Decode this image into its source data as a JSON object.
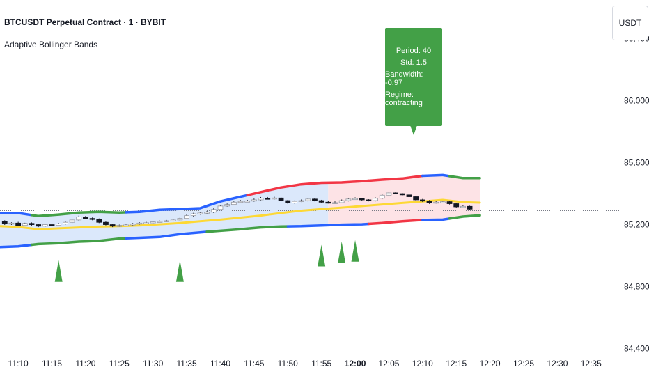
{
  "header": {
    "symbol": "BTCUSDT Perpetual Contract · 1 · BYBIT",
    "indicator": "Adaptive Bollinger Bands"
  },
  "currency": "USDT",
  "info_box": {
    "period": "Period: 40",
    "std": "Std: 1.5",
    "bandwidth": "Bandwidth: -0.97",
    "regime": "Regime: contracting"
  },
  "colors": {
    "background": "#ffffff",
    "basis": "#fdd835",
    "band_green": "#43a047",
    "band_blue": "#2962ff",
    "band_red": "#f23645",
    "fill_blue": "#dbe8fb",
    "fill_red": "#fde3e6",
    "marker": "#43a047",
    "bull_candle": "#ffffff",
    "bear_candle": "#131722",
    "axis_text": "#131722"
  },
  "chart_data": {
    "type": "line",
    "title": "BTCUSDT Perpetual Contract · 1 · BYBIT",
    "xlabel": "",
    "ylabel": "",
    "x_ticks": [
      "11:10",
      "11:15",
      "11:20",
      "11:25",
      "11:30",
      "11:35",
      "11:40",
      "11:45",
      "11:50",
      "11:55",
      "12:00",
      "12:05",
      "12:10",
      "12:15",
      "12:20",
      "12:25",
      "12:30",
      "12:35"
    ],
    "x_tick_bold": "12:00",
    "y_ticks": [
      "86,400.0",
      "86,000.0",
      "85,600.0",
      "85,200.0",
      "84,800.0",
      "84,400.0"
    ],
    "ylim": [
      84200,
      86650
    ],
    "x_start_minutes_from_11_10": -2.7,
    "x_end_minutes_from_11_10": 87.4,
    "current_price_line": 85290,
    "series": [
      {
        "name": "Upper band",
        "x": [
          -2.7,
          0,
          3,
          6,
          9,
          12,
          15,
          18,
          21,
          24,
          27,
          30,
          33,
          36,
          39,
          42,
          45,
          48,
          51,
          54,
          57,
          60,
          63,
          66,
          68.5
        ],
        "values": [
          85275,
          85275,
          85255,
          85265,
          85278,
          85282,
          85278,
          85282,
          85296,
          85300,
          85306,
          85350,
          85380,
          85410,
          85440,
          85460,
          85470,
          85472,
          85480,
          85490,
          85498,
          85515,
          85520,
          85500,
          85500
        ]
      },
      {
        "name": "Basis",
        "x": [
          -2.7,
          0,
          3,
          6,
          9,
          12,
          15,
          18,
          21,
          24,
          27,
          30,
          33,
          36,
          39,
          42,
          45,
          48,
          51,
          54,
          57,
          60,
          63,
          66,
          68.5
        ],
        "values": [
          85190,
          85185,
          85170,
          85176,
          85182,
          85187,
          85190,
          85195,
          85202,
          85210,
          85222,
          85232,
          85245,
          85258,
          85275,
          85290,
          85300,
          85310,
          85320,
          85330,
          85340,
          85350,
          85360,
          85345,
          85342
        ]
      },
      {
        "name": "Lower band",
        "x": [
          -2.7,
          0,
          3,
          6,
          9,
          12,
          15,
          18,
          21,
          24,
          27,
          30,
          33,
          36,
          39,
          42,
          45,
          48,
          51,
          54,
          57,
          60,
          63,
          66,
          68.5
        ],
        "values": [
          85055,
          85060,
          85075,
          85080,
          85090,
          85095,
          85110,
          85115,
          85120,
          85138,
          85150,
          85160,
          85170,
          85182,
          85188,
          85190,
          85195,
          85200,
          85202,
          85210,
          85222,
          85230,
          85232,
          85252,
          85260
        ]
      }
    ],
    "candles": {
      "x": [
        -2,
        -1,
        0,
        1,
        2,
        3,
        4,
        5,
        6,
        7,
        8,
        9,
        10,
        11,
        12,
        13,
        14,
        15,
        16,
        17,
        18,
        19,
        20,
        21,
        22,
        23,
        24,
        25,
        26,
        27,
        28,
        29,
        30,
        31,
        32,
        33,
        34,
        35,
        36,
        37,
        38,
        39,
        40,
        41,
        42,
        43,
        44,
        45,
        46,
        47,
        48,
        49,
        50,
        51,
        52,
        53,
        54,
        55,
        56,
        57,
        58,
        59,
        60,
        61,
        62,
        63,
        64,
        65,
        66,
        67
      ],
      "open": [
        85220,
        85205,
        85210,
        85195,
        85208,
        85200,
        85190,
        85200,
        85195,
        85205,
        85215,
        85230,
        85250,
        85240,
        85235,
        85215,
        85200,
        85190,
        85195,
        85198,
        85205,
        85210,
        85212,
        85218,
        85220,
        85225,
        85230,
        85240,
        85258,
        85270,
        85275,
        85280,
        85298,
        85320,
        85330,
        85345,
        85350,
        85352,
        85360,
        85370,
        85368,
        85372,
        85355,
        85340,
        85350,
        85355,
        85365,
        85355,
        85345,
        85340,
        85342,
        85355,
        85365,
        85368,
        85360,
        85355,
        85370,
        85390,
        85405,
        85400,
        85392,
        85380,
        85360,
        85352,
        85340,
        85345,
        85348,
        85335,
        85315,
        85318
      ],
      "close": [
        85205,
        85210,
        85195,
        85208,
        85200,
        85190,
        85200,
        85195,
        85205,
        85215,
        85230,
        85250,
        85240,
        85235,
        85215,
        85200,
        85190,
        85195,
        85198,
        85205,
        85210,
        85212,
        85218,
        85220,
        85225,
        85230,
        85240,
        85258,
        85270,
        85275,
        85280,
        85298,
        85320,
        85330,
        85345,
        85350,
        85352,
        85360,
        85370,
        85368,
        85372,
        85355,
        85340,
        85350,
        85355,
        85365,
        85355,
        85345,
        85340,
        85342,
        85355,
        85365,
        85368,
        85360,
        85355,
        85370,
        85390,
        85405,
        85400,
        85392,
        85380,
        85360,
        85352,
        85340,
        85345,
        85348,
        85335,
        85315,
        85318,
        85300
      ],
      "high": [
        85228,
        85215,
        85218,
        85212,
        85214,
        85206,
        85204,
        85205,
        85210,
        85222,
        85236,
        85258,
        85256,
        85246,
        85240,
        85220,
        85205,
        85200,
        85202,
        85210,
        85215,
        85218,
        85224,
        85226,
        85230,
        85236,
        85246,
        85265,
        85276,
        85282,
        85288,
        85305,
        85326,
        85336,
        85350,
        85358,
        85360,
        85368,
        85378,
        85378,
        85380,
        85378,
        85360,
        85356,
        85362,
        85370,
        85372,
        85360,
        85352,
        85350,
        85362,
        85372,
        85376,
        85372,
        85364,
        85376,
        85396,
        85412,
        85410,
        85404,
        85396,
        85384,
        85366,
        85358,
        85352,
        85354,
        85352,
        85340,
        85324,
        85322
      ],
      "low": [
        85198,
        85198,
        85190,
        85190,
        85194,
        85184,
        85186,
        85188,
        85190,
        85200,
        85210,
        85225,
        85234,
        85228,
        85210,
        85195,
        85184,
        85186,
        85190,
        85194,
        85200,
        85204,
        85208,
        85212,
        85216,
        85220,
        85226,
        85236,
        85252,
        85264,
        85270,
        85275,
        85292,
        85316,
        85326,
        85340,
        85344,
        85348,
        85356,
        85362,
        85362,
        85350,
        85334,
        85336,
        85346,
        85350,
        85350,
        85340,
        85336,
        85334,
        85338,
        85350,
        85360,
        85354,
        85350,
        85350,
        85364,
        85386,
        85396,
        85388,
        85376,
        85356,
        85346,
        85334,
        85336,
        85340,
        85330,
        85310,
        85310,
        85294
      ]
    },
    "band_segments": [
      {
        "from": -2.7,
        "to": 2,
        "upper": "#2962ff",
        "lower": "#2962ff"
      },
      {
        "from": 2,
        "to": 16,
        "upper": "#43a047",
        "lower": "#43a047"
      },
      {
        "from": 16,
        "to": 28,
        "upper": "#2962ff",
        "lower": "#2962ff"
      },
      {
        "from": 28,
        "to": 34,
        "upper": "#2962ff",
        "lower": "#43a047"
      },
      {
        "from": 34,
        "to": 40,
        "upper": "#f23645",
        "lower": "#43a047"
      },
      {
        "from": 40,
        "to": 52,
        "upper": "#f23645",
        "lower": "#2962ff"
      },
      {
        "from": 52,
        "to": 60,
        "upper": "#f23645",
        "lower": "#f23645"
      },
      {
        "from": 60,
        "to": 64,
        "upper": "#2962ff",
        "lower": "#2962ff"
      },
      {
        "from": 64,
        "to": 68.5,
        "upper": "#43a047",
        "lower": "#43a047"
      }
    ],
    "fill_segments": [
      {
        "from": -2.7,
        "to": 46,
        "color": "#dbe8fb"
      },
      {
        "from": 46,
        "to": 68.5,
        "color": "#fde3e6"
      }
    ],
    "markers": [
      {
        "x": 6,
        "value": 84970
      },
      {
        "x": 24,
        "value": 84970
      },
      {
        "x": 45,
        "value": 85070
      },
      {
        "x": 48,
        "value": 85090
      },
      {
        "x": 50,
        "value": 85100
      }
    ],
    "grid": false,
    "legend": "none"
  }
}
